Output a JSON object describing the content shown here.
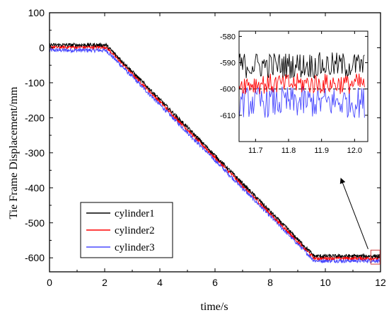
{
  "chart_data": [
    {
      "type": "line",
      "xlabel": "time/s",
      "ylabel": "Tie Frame Displacement/mm",
      "xlim": [
        0,
        12
      ],
      "ylim": [
        -640,
        100
      ],
      "x_ticks": [
        0,
        2,
        4,
        6,
        8,
        10,
        12
      ],
      "y_ticks": [
        100,
        0,
        -100,
        -200,
        -300,
        -400,
        -500,
        -600
      ],
      "legend_position": "bottom-left",
      "series": [
        {
          "name": "cylinder1",
          "color": "#000000",
          "x": [
            0,
            2.05,
            9.6,
            12
          ],
          "y": [
            8,
            8,
            -595,
            -595
          ],
          "noise": 5
        },
        {
          "name": "cylinder2",
          "color": "#ff0000",
          "x": [
            0,
            2.05,
            9.6,
            12
          ],
          "y": [
            2,
            2,
            -601,
            -601
          ],
          "noise": 5
        },
        {
          "name": "cylinder3",
          "color": "#4a4aff",
          "x": [
            0,
            2.05,
            9.6,
            12
          ],
          "y": [
            -7,
            -7,
            -608,
            -608
          ],
          "noise": 6
        }
      ]
    },
    {
      "type": "line",
      "role": "zoomed-inset",
      "xlim": [
        11.65,
        12.04
      ],
      "ylim": [
        -620,
        -578
      ],
      "x_ticks": [
        11.7,
        11.8,
        11.9,
        12.0
      ],
      "x_tick_labels": [
        "11.7",
        "11.8",
        "11.9",
        "12.0"
      ],
      "y_ticks": [
        -580,
        -590,
        -600,
        -610
      ],
      "reference_line_y": -600,
      "series": [
        {
          "name": "cylinder1",
          "color": "#000000",
          "mean": -591,
          "noise": 5
        },
        {
          "name": "cylinder2",
          "color": "#ff0000",
          "mean": -598,
          "noise": 4
        },
        {
          "name": "cylinder3",
          "color": "#4a4aff",
          "mean": -605,
          "noise": 6
        }
      ]
    }
  ]
}
